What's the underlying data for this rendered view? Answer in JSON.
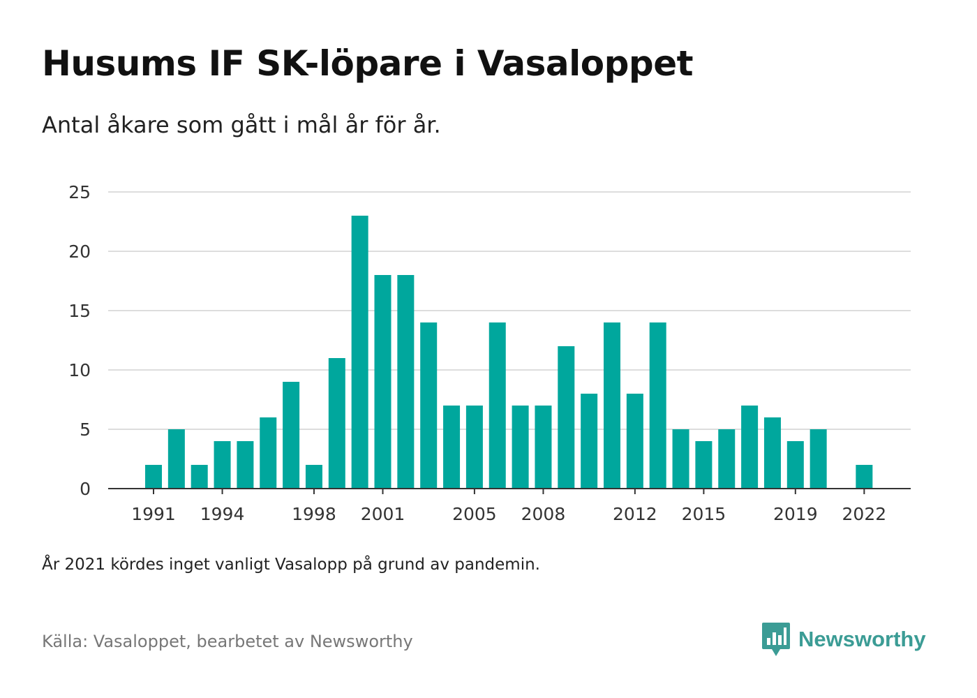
{
  "header": {
    "title": "Husums IF SK-löpare i Vasaloppet",
    "subtitle": "Antal åkare som gått i mål år för år."
  },
  "footer": {
    "note": "År 2021 kördes inget vanligt Vasalopp på grund av pandemin.",
    "source": "Källa: Vasaloppet, bearbetet av Newsworthy",
    "brand": "Newsworthy",
    "brand_icon": "newsworthy-logo-icon"
  },
  "colors": {
    "bar": "#00a79d",
    "grid": "#dddddd",
    "axis": "#333333",
    "brand": "#3b9c95"
  },
  "chart_data": {
    "type": "bar",
    "categories": [
      1991,
      1992,
      1993,
      1994,
      1995,
      1996,
      1997,
      1998,
      1999,
      2000,
      2001,
      2002,
      2003,
      2004,
      2005,
      2006,
      2007,
      2008,
      2009,
      2010,
      2011,
      2012,
      2013,
      2014,
      2015,
      2016,
      2017,
      2018,
      2019,
      2020,
      2021,
      2022
    ],
    "values": [
      2,
      5,
      2,
      4,
      4,
      6,
      9,
      2,
      11,
      23,
      18,
      18,
      14,
      7,
      7,
      14,
      7,
      7,
      12,
      8,
      14,
      8,
      14,
      5,
      4,
      5,
      7,
      6,
      4,
      5,
      null,
      2
    ],
    "x_tick_labels": [
      "1991",
      "1994",
      "1998",
      "2001",
      "2005",
      "2008",
      "2012",
      "2015",
      "2019",
      "2022"
    ],
    "y_tick_labels": [
      "0",
      "5",
      "10",
      "15",
      "20",
      "25"
    ],
    "ylim": [
      0,
      25
    ],
    "grid": true,
    "legend": "none",
    "title": "Husums IF SK-löpare i Vasaloppet",
    "xlabel": "",
    "ylabel": ""
  }
}
